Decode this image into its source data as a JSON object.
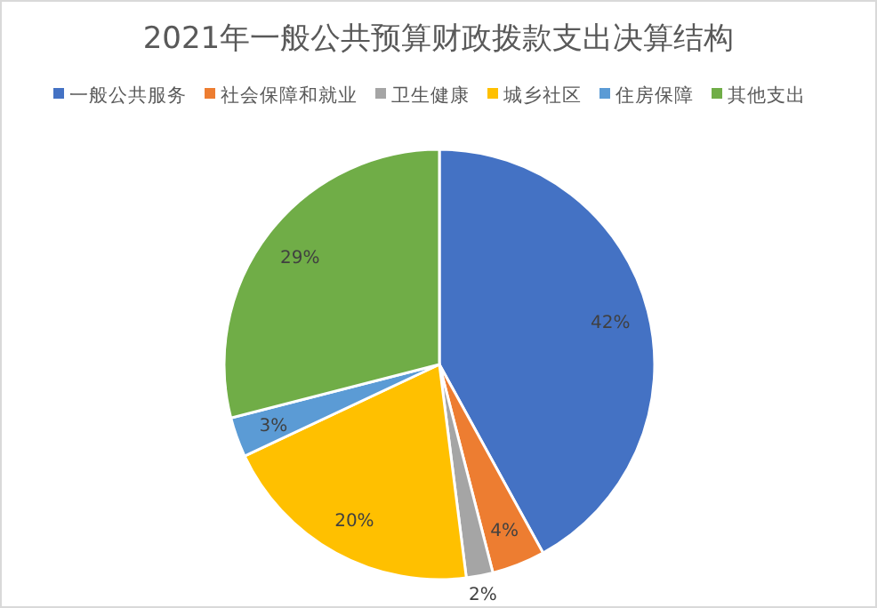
{
  "chart_data": {
    "type": "pie",
    "title": "2021年一般公共预算财政拨款支出决算结构",
    "categories": [
      "一般公共服务",
      "社会保障和就业",
      "卫生健康",
      "城乡社区",
      "住房保障",
      "其他支出"
    ],
    "values": [
      42,
      4,
      2,
      20,
      3,
      29
    ],
    "colors": [
      "#4472c4",
      "#ed7d31",
      "#a5a5a5",
      "#ffc000",
      "#5b9bd5",
      "#70ad47"
    ],
    "value_labels": [
      "42%",
      "4%",
      "2%",
      "20%",
      "3%",
      "29%"
    ],
    "legend": "top"
  }
}
